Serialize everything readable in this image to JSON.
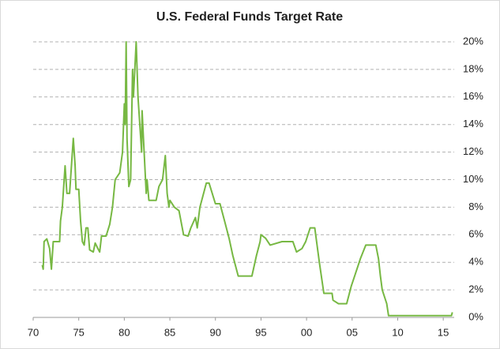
{
  "chart_data": {
    "type": "line",
    "title": "U.S. Federal Funds Target Rate",
    "color": "#77b843",
    "grid": true,
    "xlim": [
      1970,
      2016.2
    ],
    "ylim": [
      0,
      20
    ],
    "xticks": [
      {
        "value": 1970,
        "label": "70"
      },
      {
        "value": 1975,
        "label": "75"
      },
      {
        "value": 1980,
        "label": "80"
      },
      {
        "value": 1985,
        "label": "85"
      },
      {
        "value": 1990,
        "label": "90"
      },
      {
        "value": 1995,
        "label": "95"
      },
      {
        "value": 2000,
        "label": "00"
      },
      {
        "value": 2005,
        "label": "05"
      },
      {
        "value": 2010,
        "label": "10"
      },
      {
        "value": 2015,
        "label": "15"
      }
    ],
    "yticks": [
      {
        "value": 0,
        "label": "0%"
      },
      {
        "value": 2,
        "label": "2%"
      },
      {
        "value": 4,
        "label": "4%"
      },
      {
        "value": 6,
        "label": "6%"
      },
      {
        "value": 8,
        "label": "8%"
      },
      {
        "value": 10,
        "label": "10%"
      },
      {
        "value": 12,
        "label": "12%"
      },
      {
        "value": 14,
        "label": "14%"
      },
      {
        "value": 16,
        "label": "16%"
      },
      {
        "value": 18,
        "label": "18%"
      },
      {
        "value": 20,
        "label": "20%"
      }
    ],
    "x": [
      1971.0,
      1971.1,
      1971.2,
      1971.5,
      1971.8,
      1972.0,
      1972.2,
      1972.9,
      1973.0,
      1973.2,
      1973.5,
      1973.7,
      1974.0,
      1974.4,
      1974.6,
      1974.7,
      1975.0,
      1975.2,
      1975.4,
      1975.6,
      1975.8,
      1976.0,
      1976.2,
      1976.6,
      1976.8,
      1977.1,
      1977.3,
      1977.5,
      1978.0,
      1978.4,
      1978.7,
      1979.0,
      1979.5,
      1979.8,
      1980.0,
      1980.1,
      1980.2,
      1980.3,
      1980.5,
      1980.7,
      1980.9,
      1981.0,
      1981.3,
      1981.5,
      1981.9,
      1981.95,
      1982.1,
      1982.4,
      1982.5,
      1982.7,
      1983.5,
      1983.8,
      1984.2,
      1984.5,
      1984.7,
      1984.9,
      1985.0,
      1985.5,
      1986.0,
      1986.5,
      1987.0,
      1987.3,
      1987.8,
      1988.0,
      1988.3,
      1989.0,
      1989.3,
      1990.0,
      1990.5,
      1991.0,
      1991.5,
      1991.9,
      1992.5,
      1994.0,
      1994.5,
      1994.9,
      1995.0,
      1995.5,
      1996.0,
      1997.3,
      1998.5,
      1998.9,
      1999.5,
      1999.9,
      2000.4,
      2000.9,
      2001.4,
      2001.9,
      2002.8,
      2002.9,
      2003.5,
      2004.4,
      2004.9,
      2005.4,
      2005.9,
      2006.5,
      2007.6,
      2007.9,
      2008.1,
      2008.3,
      2008.8,
      2009.0,
      2015.9,
      2016.0
    ],
    "values": [
      3.8,
      3.5,
      5.5,
      5.7,
      5.0,
      3.5,
      5.5,
      5.5,
      7.0,
      8.0,
      11.0,
      9.0,
      9.0,
      13.0,
      11.0,
      9.3,
      9.3,
      7.0,
      5.5,
      5.25,
      6.5,
      6.5,
      4.9,
      4.75,
      5.4,
      5.0,
      4.75,
      5.9,
      5.9,
      6.75,
      8.0,
      10.0,
      10.5,
      12.0,
      15.5,
      14.0,
      20.0,
      13.0,
      9.5,
      10.0,
      18.0,
      16.0,
      20.0,
      16.0,
      12.0,
      15.0,
      13.0,
      9.0,
      10.0,
      8.5,
      8.5,
      9.5,
      10.0,
      11.75,
      9.0,
      8.0,
      8.5,
      8.0,
      7.75,
      6.0,
      5.9,
      6.5,
      7.25,
      6.5,
      8.0,
      9.75,
      9.75,
      8.25,
      8.25,
      7.0,
      5.75,
      4.5,
      3.0,
      3.0,
      4.5,
      5.5,
      6.0,
      5.75,
      5.25,
      5.5,
      5.5,
      4.75,
      5.0,
      5.5,
      6.5,
      6.5,
      4.0,
      1.75,
      1.75,
      1.25,
      1.0,
      1.0,
      2.25,
      3.25,
      4.25,
      5.25,
      5.25,
      4.25,
      3.0,
      2.0,
      1.0,
      0.125,
      0.125,
      0.375
    ]
  }
}
